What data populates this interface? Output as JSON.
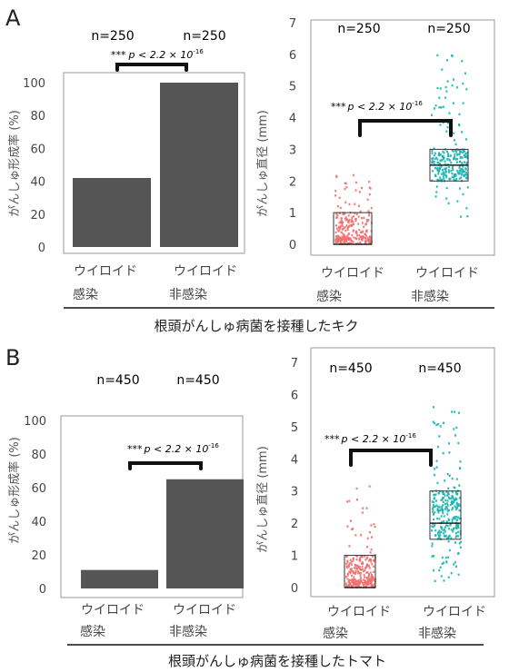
{
  "panels": [
    {
      "letter": "A",
      "caption": "根頭がんしゅ病菌を接種したキク",
      "bar_chart": {
        "ylabel": "がんしゅ形成率 (%)",
        "categories": [
          [
            "ウイロイド",
            "感染"
          ],
          [
            "ウイロイド",
            "非感染"
          ]
        ],
        "n_labels": [
          "n=250",
          "n=250"
        ],
        "significance": {
          "stars": "***",
          "p_label": "p < 2.2 × 10",
          "exponent": "-16"
        }
      },
      "box_chart": {
        "ylabel": "がんしゅ直径 (mm)",
        "categories": [
          [
            "ウイロイド",
            "感染"
          ],
          [
            "ウイロイド",
            "非感染"
          ]
        ],
        "n_labels": [
          "n=250",
          "n=250"
        ],
        "significance": {
          "stars": "***",
          "p_label": "p < 2.2 × 10",
          "exponent": "-16"
        }
      }
    },
    {
      "letter": "B",
      "caption": "根頭がんしゅ病菌を接種したトマト",
      "bar_chart": {
        "ylabel": "がんしゅ形成率 (%)",
        "categories": [
          [
            "ウイロイド",
            "感染"
          ],
          [
            "ウイロイド",
            "非感染"
          ]
        ],
        "n_labels": [
          "n=450",
          "n=450"
        ],
        "significance": {
          "stars": "***",
          "p_label": "p < 2.2 × 10",
          "exponent": "-16"
        }
      },
      "box_chart": {
        "ylabel": "がんしゅ直径 (mm)",
        "categories": [
          [
            "ウイロイド",
            "感染"
          ],
          [
            "ウイロイド",
            "非感染"
          ]
        ],
        "n_labels": [
          "n=450",
          "n=450"
        ],
        "significance": {
          "stars": "***",
          "p_label": "p < 2.2 × 10",
          "exponent": "-16"
        }
      }
    }
  ],
  "chart_data": [
    {
      "panel": "A",
      "type": "bar",
      "categories": [
        "ウイロイド感染",
        "ウイロイド非感染"
      ],
      "values": [
        42,
        100
      ],
      "ylabel": "がんしゅ形成率 (%)",
      "ylim": [
        0,
        100
      ],
      "yticks": [
        0,
        20,
        40,
        60,
        80,
        100
      ],
      "bar_color": "#555555"
    },
    {
      "panel": "A",
      "type": "box",
      "categories": [
        "ウイロイド感染",
        "ウイロイド非感染"
      ],
      "ylabel": "がんしゅ直径 (mm)",
      "ylim": [
        0,
        7
      ],
      "yticks": [
        0,
        1,
        2,
        3,
        4,
        5,
        6,
        7
      ],
      "boxes": [
        {
          "q1": 0,
          "median": 0,
          "q3": 1.0,
          "point_color": "#f07070",
          "point_range": [
            0,
            2.2
          ],
          "n": 250
        },
        {
          "q1": 2.0,
          "median": 2.5,
          "q3": 3.0,
          "point_color": "#1ab5b0",
          "point_range": [
            0.8,
            6.0
          ],
          "n": 250
        }
      ]
    },
    {
      "panel": "B",
      "type": "bar",
      "categories": [
        "ウイロイド感染",
        "ウイロイド非感染"
      ],
      "values": [
        11,
        65
      ],
      "ylabel": "がんしゅ形成率 (%)",
      "ylim": [
        0,
        100
      ],
      "yticks": [
        0,
        20,
        40,
        60,
        80,
        100
      ],
      "bar_color": "#555555"
    },
    {
      "panel": "B",
      "type": "box",
      "categories": [
        "ウイロイド感染",
        "ウイロイド非感染"
      ],
      "ylabel": "がんしゅ直径 (mm)",
      "ylim": [
        0,
        7
      ],
      "yticks": [
        0,
        1,
        2,
        3,
        4,
        5,
        6,
        7
      ],
      "boxes": [
        {
          "q1": 0,
          "median": 0,
          "q3": 1.0,
          "point_color": "#f07070",
          "point_range": [
            0,
            3.2
          ],
          "n": 450
        },
        {
          "q1": 1.5,
          "median": 2.0,
          "q3": 3.0,
          "point_color": "#1ab5b0",
          "point_range": [
            0.2,
            5.7
          ],
          "n": 450
        }
      ]
    }
  ]
}
